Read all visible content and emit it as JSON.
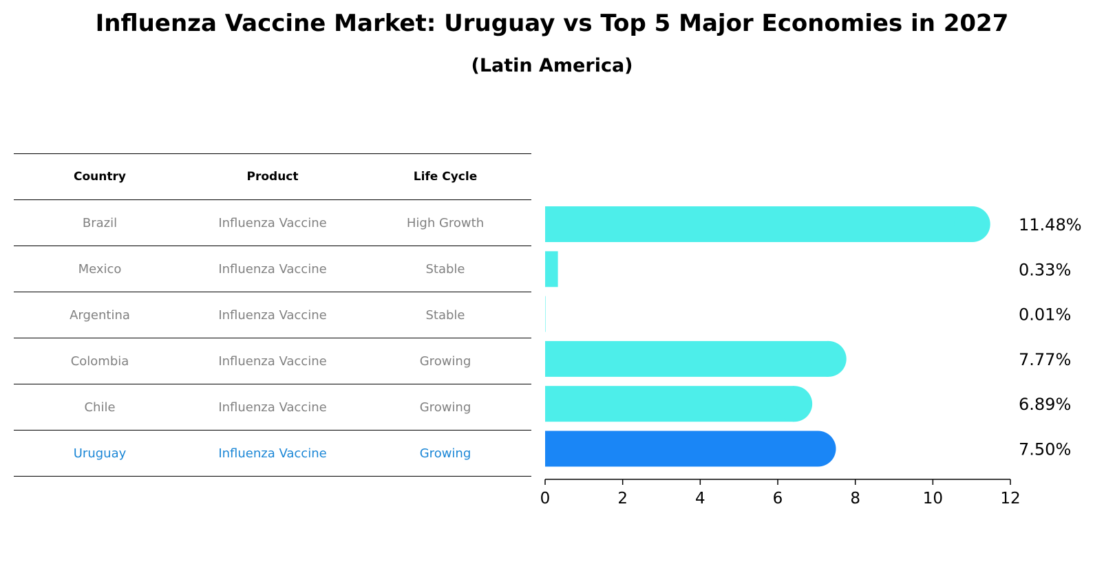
{
  "title": "Influenza Vaccine Market: Uruguay vs Top 5 Major Economies in 2027",
  "subtitle": "(Latin America)",
  "table": {
    "headers": [
      "Country",
      "Product",
      "Life Cycle"
    ],
    "rows": [
      [
        "Brazil",
        "Influenza Vaccine",
        "High Growth"
      ],
      [
        "Mexico",
        "Influenza Vaccine",
        "Stable"
      ],
      [
        "Argentina",
        "Influenza Vaccine",
        "Stable"
      ],
      [
        "Colombia",
        "Influenza Vaccine",
        "Growing"
      ],
      [
        "Chile",
        "Influenza Vaccine",
        "Growing"
      ],
      [
        "Uruguay",
        "Influenza Vaccine",
        "Growing"
      ]
    ],
    "highlight_color": "#1a86d6",
    "text_color": "#808080"
  },
  "chart_data": {
    "type": "bar",
    "orientation": "horizontal",
    "categories": [
      "Brazil",
      "Mexico",
      "Argentina",
      "Colombia",
      "Chile",
      "Uruguay"
    ],
    "values": [
      11.48,
      0.33,
      0.01,
      7.77,
      6.89,
      7.5
    ],
    "data_labels": [
      "11.48%",
      "0.33%",
      "0.01%",
      "7.77%",
      "6.89%",
      "7.50%"
    ],
    "xlim": [
      0,
      12
    ],
    "xticks": [
      "0",
      "2",
      "4",
      "6",
      "8",
      "10",
      "12"
    ],
    "colors": {
      "default": "#4deeea",
      "highlight": "#1a86f6"
    },
    "highlight_index": 5,
    "grid": false
  }
}
